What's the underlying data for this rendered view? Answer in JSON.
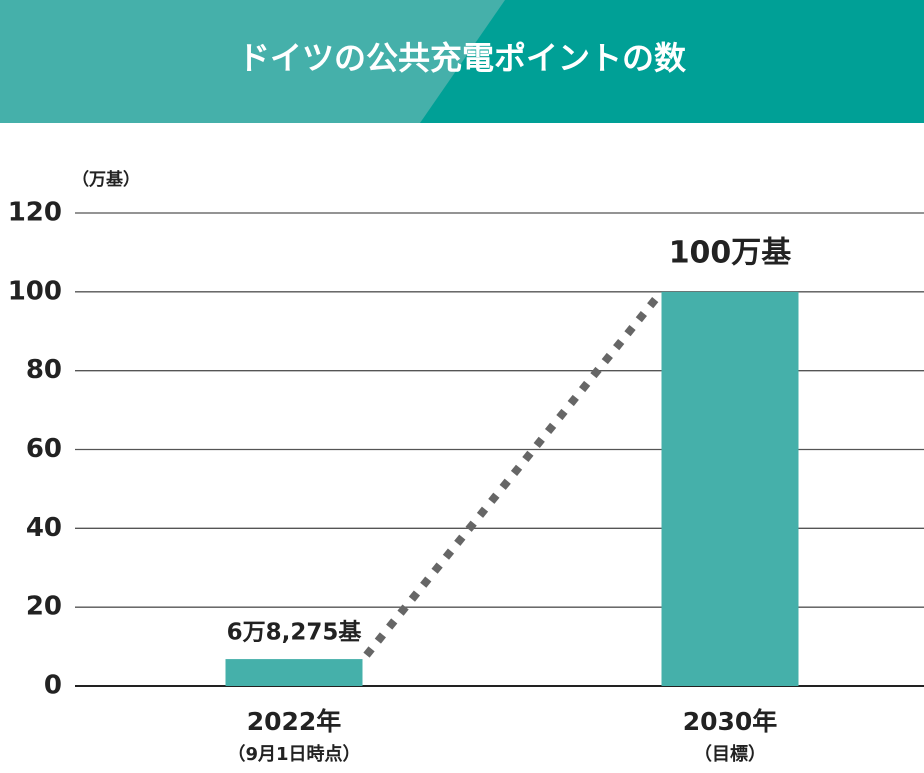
{
  "chart_data": {
    "type": "bar",
    "title": "ドイツの公共充電ポイントの数",
    "y_unit": "（万基）",
    "categories": [
      "2022年",
      "2030年"
    ],
    "category_notes": [
      "（9月1日時点）",
      "（目標）"
    ],
    "values": [
      6.8275,
      100
    ],
    "value_labels": [
      "6万8,275基",
      "100万基"
    ],
    "color": "#45b0aa",
    "ylim": [
      0,
      120
    ],
    "yticks": [
      0,
      20,
      40,
      60,
      80,
      100,
      120
    ],
    "grid": true
  }
}
